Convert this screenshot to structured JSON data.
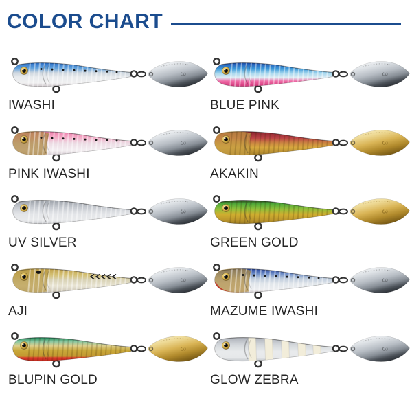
{
  "title": "COLOR CHART",
  "theme": {
    "title_color": "#1b4c8e",
    "underline_color": "#1b4c8e",
    "label_color": "#262626",
    "background": "#ffffff",
    "hardware_color": "#333333",
    "eye_colors": [
      "#f6e098",
      "#d9b54e",
      "#8a6418"
    ],
    "blade_number": "3"
  },
  "blade_colors": {
    "silver": [
      [
        0,
        "#ffffff"
      ],
      [
        0.3,
        "#dfe3e7"
      ],
      [
        0.55,
        "#b7bdc4"
      ],
      [
        0.75,
        "#878e96"
      ],
      [
        0.9,
        "#4a5057"
      ],
      [
        1,
        "#33383e"
      ]
    ],
    "gold": [
      [
        0,
        "#faf2cf"
      ],
      [
        0.3,
        "#eeda96"
      ],
      [
        0.55,
        "#d9b455"
      ],
      [
        0.78,
        "#b18a2c"
      ],
      [
        1,
        "#7c5d16"
      ]
    ]
  },
  "items": [
    {
      "name": "IWASHI",
      "blade": "silver",
      "body": [
        [
          0,
          "#2a6fc8"
        ],
        [
          0.22,
          "#5fa0dc"
        ],
        [
          0.42,
          "#cdd6de"
        ],
        [
          0.6,
          "#e8ebee"
        ],
        [
          0.85,
          "#f0f0f1"
        ],
        [
          1,
          "#cfc8cc"
        ]
      ],
      "dots": true,
      "ribs": "light"
    },
    {
      "name": "BLUE PINK",
      "blade": "silver",
      "body": [
        [
          0,
          "#1d50b0"
        ],
        [
          0.25,
          "#3e9ada"
        ],
        [
          0.45,
          "#a8d8ee"
        ],
        [
          0.62,
          "#dcebf3"
        ],
        [
          0.78,
          "#ef6aa6"
        ],
        [
          1,
          "#d03579"
        ]
      ],
      "ribs": "light"
    },
    {
      "name": "PINK IWASHI",
      "blade": "silver",
      "head": "#ab843b",
      "body": [
        [
          0,
          "#ee7cab"
        ],
        [
          0.25,
          "#f3aac6"
        ],
        [
          0.5,
          "#ecdce4"
        ],
        [
          0.8,
          "#f4eff2"
        ],
        [
          1,
          "#d5cbd1"
        ]
      ],
      "dots": true,
      "ribs": "light"
    },
    {
      "name": "AKAKIN",
      "blade": "gold",
      "head": "#c59d44",
      "body": [
        [
          0,
          "#8c2330"
        ],
        [
          0.28,
          "#bb4345"
        ],
        [
          0.5,
          "#cd8a42"
        ],
        [
          0.68,
          "#d7a83e"
        ],
        [
          1,
          "#a5802b"
        ]
      ],
      "ribs": "dark"
    },
    {
      "name": "UV SILVER",
      "blade": "silver",
      "body": [
        [
          0,
          "#9ba0a8"
        ],
        [
          0.3,
          "#c6cad0"
        ],
        [
          0.58,
          "#e3e5e8"
        ],
        [
          0.85,
          "#e9eaec"
        ],
        [
          1,
          "#c9cbcf"
        ]
      ],
      "ribs": "light"
    },
    {
      "name": "GREEN GOLD",
      "blade": "gold",
      "body": [
        [
          0,
          "#233f1b"
        ],
        [
          0.15,
          "#4faa39"
        ],
        [
          0.38,
          "#8fc03a"
        ],
        [
          0.6,
          "#cfae30"
        ],
        [
          0.85,
          "#bb962c"
        ],
        [
          1,
          "#9a7a22"
        ]
      ],
      "ribs": "dark"
    },
    {
      "name": "AJI",
      "blade": "silver",
      "head": "#b99a47",
      "body": [
        [
          0,
          "#bfa04a"
        ],
        [
          0.25,
          "#d4c073"
        ],
        [
          0.48,
          "#d9d3b6"
        ],
        [
          0.72,
          "#e9e5d4"
        ],
        [
          1,
          "#c8c1b1"
        ]
      ],
      "chevrons": true,
      "gillSpot": true,
      "ribs": "light"
    },
    {
      "name": "MAZUME IWASHI",
      "blade": "silver",
      "head": "#b08b3d",
      "chin": "#c23b2b",
      "body": [
        [
          0,
          "#27459c"
        ],
        [
          0.2,
          "#6a8ac6"
        ],
        [
          0.4,
          "#bac8da"
        ],
        [
          0.62,
          "#e1e6eb"
        ],
        [
          0.88,
          "#eceef0"
        ],
        [
          1,
          "#d2cacd"
        ]
      ],
      "dots": true,
      "ribs": "light"
    },
    {
      "name": "BLUPIN GOLD",
      "blade": "gold",
      "body": [
        [
          0,
          "#1f8a5c"
        ],
        [
          0.18,
          "#8fc9a2"
        ],
        [
          0.35,
          "#dccf8d"
        ],
        [
          0.55,
          "#c9a83a"
        ],
        [
          0.8,
          "#c29730"
        ],
        [
          0.86,
          "#dd392c"
        ],
        [
          1,
          "#bb281f"
        ]
      ],
      "ribs": "dark"
    },
    {
      "name": "GLOW ZEBRA",
      "blade": "silver",
      "body": [
        [
          0,
          "#aeb2ba"
        ],
        [
          0.3,
          "#d2d6da"
        ],
        [
          0.6,
          "#e9ebed"
        ],
        [
          0.85,
          "#e6e8ea"
        ],
        [
          1,
          "#c3c7cb"
        ]
      ],
      "zebra": true
    }
  ]
}
